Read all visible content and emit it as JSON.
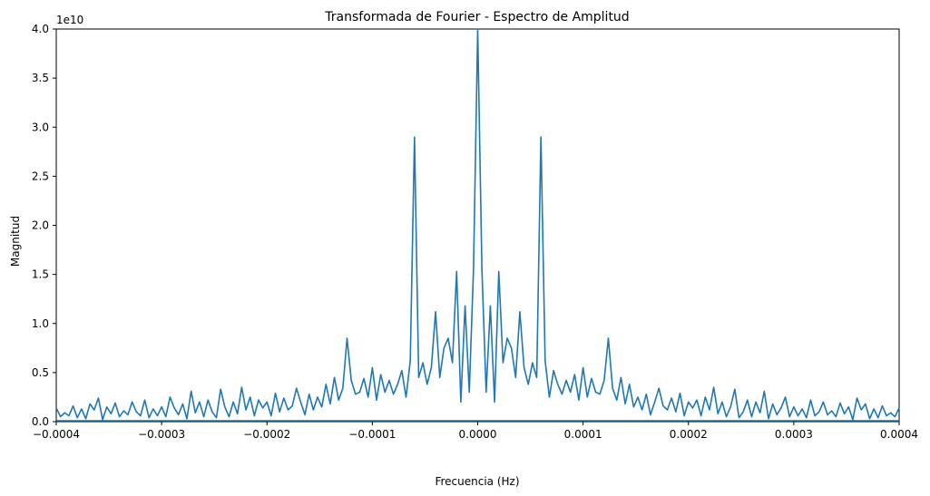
{
  "chart_data": {
    "type": "line",
    "title": "Transformada de Fourier - Espectro de Amplitud",
    "xlabel": "Frecuencia (Hz)",
    "ylabel": "Magnitud",
    "y_offset_label": "1e10",
    "xlim": [
      -0.0004,
      0.0004
    ],
    "ylim": [
      0,
      4.0
    ],
    "x_ticks": [
      -0.0004,
      -0.0003,
      -0.0002,
      -0.0001,
      0.0,
      0.0001,
      0.0002,
      0.0003,
      0.0004
    ],
    "x_tick_labels": [
      "−0.0004",
      "−0.0003",
      "−0.0002",
      "−0.0001",
      "0.0000",
      "0.0001",
      "0.0002",
      "0.0003",
      "0.0004"
    ],
    "y_ticks": [
      0.0,
      0.5,
      1.0,
      1.5,
      2.0,
      2.5,
      3.0,
      3.5,
      4.0
    ],
    "y_tick_labels": [
      "0.0",
      "0.5",
      "1.0",
      "1.5",
      "2.0",
      "2.5",
      "3.0",
      "3.5",
      "4.0"
    ],
    "y_unit_scale": 10000000000.0,
    "grid": false,
    "legend": "none",
    "line_color": "#1f77b4",
    "baseline_color": "#1f77b4",
    "series": [
      {
        "x": [
          -0.0004,
          -0.000396,
          -0.000392,
          -0.000388,
          -0.000384,
          -0.00038,
          -0.000376,
          -0.000372,
          -0.000368,
          -0.000364,
          -0.00036,
          -0.000356,
          -0.000352,
          -0.000348,
          -0.000344,
          -0.00034,
          -0.000336,
          -0.000332,
          -0.000328,
          -0.000324,
          -0.00032,
          -0.000316,
          -0.000312,
          -0.000308,
          -0.000304,
          -0.0003,
          -0.000296,
          -0.000292,
          -0.000288,
          -0.000284,
          -0.00028,
          -0.000276,
          -0.000272,
          -0.000268,
          -0.000264,
          -0.00026,
          -0.000256,
          -0.000252,
          -0.000248,
          -0.000244,
          -0.00024,
          -0.000236,
          -0.000232,
          -0.000228,
          -0.000224,
          -0.00022,
          -0.000216,
          -0.000212,
          -0.000208,
          -0.000204,
          -0.0002,
          -0.000196,
          -0.000192,
          -0.000188,
          -0.000184,
          -0.00018,
          -0.000176,
          -0.000172,
          -0.000168,
          -0.000164,
          -0.00016,
          -0.000156,
          -0.000152,
          -0.000148,
          -0.000144,
          -0.00014,
          -0.000136,
          -0.000132,
          -0.000128,
          -0.000124,
          -0.00012,
          -0.000116,
          -0.000112,
          -0.000108,
          -0.000104,
          -0.0001,
          -9.6e-05,
          -9.2e-05,
          -8.8e-05,
          -8.4e-05,
          -8e-05,
          -7.6e-05,
          -7.2e-05,
          -6.8e-05,
          -6.4e-05,
          -6e-05,
          -5.6e-05,
          -5.2e-05,
          -4.8e-05,
          -4.4e-05,
          -4e-05,
          -3.6e-05,
          -3.2e-05,
          -2.8e-05,
          -2.4e-05,
          -2e-05,
          -1.6e-05,
          -1.2e-05,
          -8e-06,
          -4e-06,
          0.0,
          4e-06,
          8e-06,
          1.2e-05,
          1.6e-05,
          2e-05,
          2.4e-05,
          2.8e-05,
          3.2e-05,
          3.6e-05,
          4e-05,
          4.4e-05,
          4.8e-05,
          5.2e-05,
          5.6e-05,
          6e-05,
          6.4e-05,
          6.8e-05,
          7.2e-05,
          7.6e-05,
          8e-05,
          8.4e-05,
          8.8e-05,
          9.2e-05,
          9.6e-05,
          0.0001,
          0.000104,
          0.000108,
          0.000112,
          0.000116,
          0.00012,
          0.000124,
          0.000128,
          0.000132,
          0.000136,
          0.00014,
          0.000144,
          0.000148,
          0.000152,
          0.000156,
          0.00016,
          0.000164,
          0.000168,
          0.000172,
          0.000176,
          0.00018,
          0.000184,
          0.000188,
          0.000192,
          0.000196,
          0.0002,
          0.000204,
          0.000208,
          0.000212,
          0.000216,
          0.00022,
          0.000224,
          0.000228,
          0.000232,
          0.000236,
          0.00024,
          0.000244,
          0.000248,
          0.000252,
          0.000256,
          0.00026,
          0.000264,
          0.000268,
          0.000272,
          0.000276,
          0.00028,
          0.000284,
          0.000288,
          0.000292,
          0.000296,
          0.0003,
          0.000304,
          0.000308,
          0.000312,
          0.000316,
          0.00032,
          0.000324,
          0.000328,
          0.000332,
          0.000336,
          0.00034,
          0.000344,
          0.000348,
          0.000352,
          0.000356,
          0.00036,
          0.000364,
          0.000368,
          0.000372,
          0.000376,
          0.00038,
          0.000384,
          0.000388,
          0.000392,
          0.000396,
          0.0004
        ],
        "y": [
          0.14,
          0.05,
          0.09,
          0.06,
          0.16,
          0.04,
          0.13,
          0.03,
          0.18,
          0.12,
          0.24,
          0.02,
          0.15,
          0.08,
          0.19,
          0.05,
          0.11,
          0.07,
          0.2,
          0.1,
          0.06,
          0.22,
          0.04,
          0.13,
          0.06,
          0.15,
          0.05,
          0.25,
          0.14,
          0.07,
          0.18,
          0.03,
          0.31,
          0.09,
          0.2,
          0.05,
          0.22,
          0.1,
          0.04,
          0.33,
          0.15,
          0.05,
          0.2,
          0.08,
          0.35,
          0.12,
          0.25,
          0.06,
          0.22,
          0.14,
          0.2,
          0.06,
          0.29,
          0.1,
          0.24,
          0.12,
          0.16,
          0.34,
          0.2,
          0.07,
          0.28,
          0.12,
          0.25,
          0.15,
          0.38,
          0.18,
          0.45,
          0.22,
          0.34,
          0.85,
          0.42,
          0.28,
          0.3,
          0.44,
          0.25,
          0.55,
          0.22,
          0.48,
          0.3,
          0.42,
          0.28,
          0.38,
          0.52,
          0.25,
          0.62,
          2.9,
          0.45,
          0.6,
          0.38,
          0.55,
          1.12,
          0.45,
          0.75,
          0.85,
          0.6,
          1.53,
          0.2,
          1.18,
          0.3,
          1.55,
          4.0,
          1.55,
          0.3,
          1.18,
          0.2,
          1.53,
          0.6,
          0.85,
          0.75,
          0.45,
          1.12,
          0.55,
          0.38,
          0.6,
          0.45,
          2.9,
          0.62,
          0.25,
          0.52,
          0.38,
          0.28,
          0.42,
          0.3,
          0.48,
          0.22,
          0.55,
          0.25,
          0.44,
          0.3,
          0.28,
          0.42,
          0.85,
          0.34,
          0.22,
          0.45,
          0.18,
          0.38,
          0.15,
          0.25,
          0.12,
          0.28,
          0.07,
          0.2,
          0.34,
          0.16,
          0.12,
          0.24,
          0.1,
          0.29,
          0.06,
          0.2,
          0.14,
          0.22,
          0.06,
          0.25,
          0.12,
          0.35,
          0.08,
          0.2,
          0.05,
          0.15,
          0.33,
          0.04,
          0.1,
          0.22,
          0.05,
          0.2,
          0.09,
          0.31,
          0.03,
          0.18,
          0.07,
          0.14,
          0.25,
          0.05,
          0.15,
          0.06,
          0.13,
          0.04,
          0.22,
          0.06,
          0.1,
          0.2,
          0.07,
          0.11,
          0.05,
          0.19,
          0.08,
          0.15,
          0.02,
          0.24,
          0.12,
          0.18,
          0.03,
          0.13,
          0.04,
          0.16,
          0.06,
          0.09,
          0.05,
          0.14
        ]
      }
    ]
  }
}
